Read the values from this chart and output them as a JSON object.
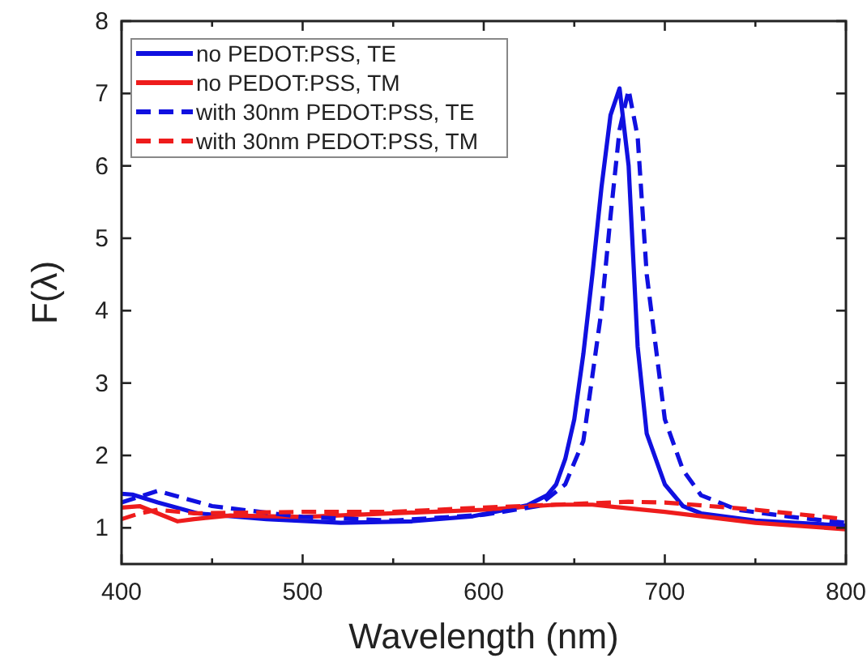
{
  "chart_data": {
    "type": "line",
    "xlabel": "Wavelength (nm)",
    "ylabel": "F(λ)",
    "xlim": [
      400,
      800
    ],
    "ylim": [
      0.5,
      8
    ],
    "xticks": [
      400,
      {
        "value": 450,
        "label": null
      },
      500,
      {
        "value": 550,
        "label": null
      },
      600,
      {
        "value": 650,
        "label": null
      },
      700,
      {
        "value": 750,
        "label": null
      },
      800
    ],
    "yticks": [
      1,
      2,
      3,
      4,
      5,
      6,
      7,
      8
    ],
    "legend": "top left",
    "grid": false,
    "series": [
      {
        "name": "no PEDOT:PSS, TE",
        "color": "#1010e0",
        "line_style": "solid",
        "x": [
          400,
          406,
          420,
          442,
          480,
          521,
          560,
          594,
          624,
          635,
          640,
          645,
          650,
          655,
          660,
          665,
          670,
          675,
          680,
          685,
          690,
          700,
          710,
          720,
          750,
          800
        ],
        "values": [
          1.47,
          1.46,
          1.35,
          1.2,
          1.12,
          1.07,
          1.09,
          1.16,
          1.31,
          1.45,
          1.6,
          1.95,
          2.5,
          3.4,
          4.5,
          5.7,
          6.7,
          7.07,
          6.0,
          3.5,
          2.3,
          1.6,
          1.3,
          1.2,
          1.1,
          1.03
        ]
      },
      {
        "name": "no PEDOT:PSS, TM",
        "color": "#ee1c1c",
        "line_style": "solid",
        "x": [
          400,
          410,
          420,
          431,
          440,
          460,
          500,
          550,
          600,
          640,
          660,
          700,
          750,
          800
        ],
        "values": [
          1.28,
          1.3,
          1.2,
          1.09,
          1.12,
          1.17,
          1.15,
          1.2,
          1.25,
          1.32,
          1.32,
          1.22,
          1.07,
          0.98
        ]
      },
      {
        "name": "with 30nm PEDOT:PSS, TE",
        "color": "#1010e0",
        "line_style": "dashed",
        "x": [
          400,
          420,
          450,
          500,
          550,
          600,
          630,
          645,
          655,
          665,
          670,
          675,
          680,
          685,
          690,
          700,
          710,
          720,
          740,
          770,
          800
        ],
        "values": [
          1.35,
          1.51,
          1.3,
          1.15,
          1.1,
          1.18,
          1.3,
          1.6,
          2.2,
          4.0,
          5.3,
          6.5,
          7.05,
          6.4,
          4.5,
          2.5,
          1.8,
          1.45,
          1.25,
          1.15,
          1.07
        ]
      },
      {
        "name": "with 30nm PEDOT:PSS, TM",
        "color": "#ee1c1c",
        "line_style": "dashed",
        "x": [
          400,
          410,
          420,
          440,
          500,
          550,
          600,
          650,
          680,
          700,
          750,
          800
        ],
        "values": [
          1.12,
          1.2,
          1.25,
          1.2,
          1.22,
          1.22,
          1.28,
          1.33,
          1.36,
          1.35,
          1.25,
          1.12
        ]
      }
    ]
  }
}
